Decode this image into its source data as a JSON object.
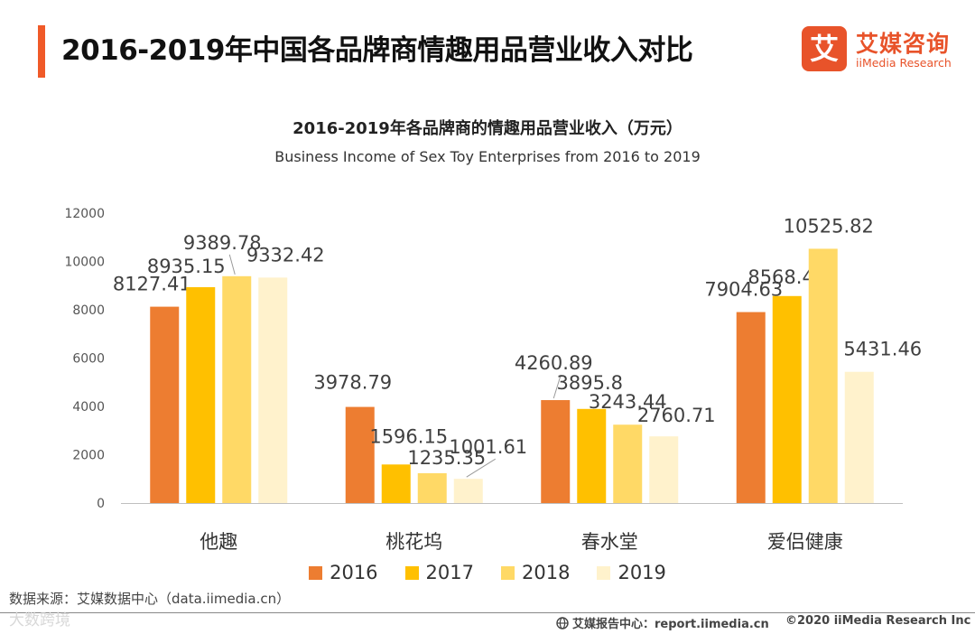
{
  "page": {
    "title": "2016-2019年中国各品牌商情趣用品营业收入对比",
    "accent_color": "#f05a28"
  },
  "logo": {
    "box_char": "艾",
    "cn": "艾媒咨询",
    "en": "iiMedia Research",
    "color": "#e8532a"
  },
  "chart_data": {
    "type": "bar",
    "title": "2016-2019年各品牌商的情趣用品营业收入（万元）",
    "subtitle": "Business Income of Sex Toy Enterprises from 2016 to 2019",
    "categories": [
      "他趣",
      "桃花坞",
      "春水堂",
      "爱侣健康"
    ],
    "series": [
      {
        "name": "2016",
        "color": "#ed7d31",
        "values": [
          8127.41,
          3978.79,
          4260.89,
          7904.63
        ]
      },
      {
        "name": "2017",
        "color": "#ffc000",
        "values": [
          8935.15,
          1596.15,
          3895.8,
          8568.41
        ]
      },
      {
        "name": "2018",
        "color": "#ffd966",
        "values": [
          9389.78,
          1235.35,
          3243.44,
          10525.82
        ]
      },
      {
        "name": "2019",
        "color": "#fff2cc",
        "values": [
          9332.42,
          1001.61,
          2760.71,
          5431.46
        ]
      }
    ],
    "value_labels": [
      [
        "8127.41",
        "3978.79",
        "4260.89",
        "7904.63"
      ],
      [
        "8935.15",
        "1596.15",
        "3895.8",
        "8568.41"
      ],
      [
        "9389.78",
        "1235.35",
        "3243.44",
        "10525.82"
      ],
      [
        "9332.42",
        "1001.61",
        "2760.71",
        "5431.46"
      ]
    ],
    "ylim": [
      0,
      12000
    ],
    "yticks": [
      0,
      2000,
      4000,
      6000,
      8000,
      10000,
      12000
    ],
    "ytick_labels": [
      "0",
      "2000",
      "4000",
      "6000",
      "8000",
      "10000",
      "12000"
    ],
    "xlabel": "",
    "ylabel": "",
    "grid": false,
    "legend_position": "bottom"
  },
  "footer": {
    "source": "数据来源：艾媒数据中心（data.iimedia.cn）",
    "watermark": "大数跨境",
    "report": "艾媒报告中心：report.iimedia.cn",
    "copyright": "©2020  iiMedia Research  Inc"
  }
}
